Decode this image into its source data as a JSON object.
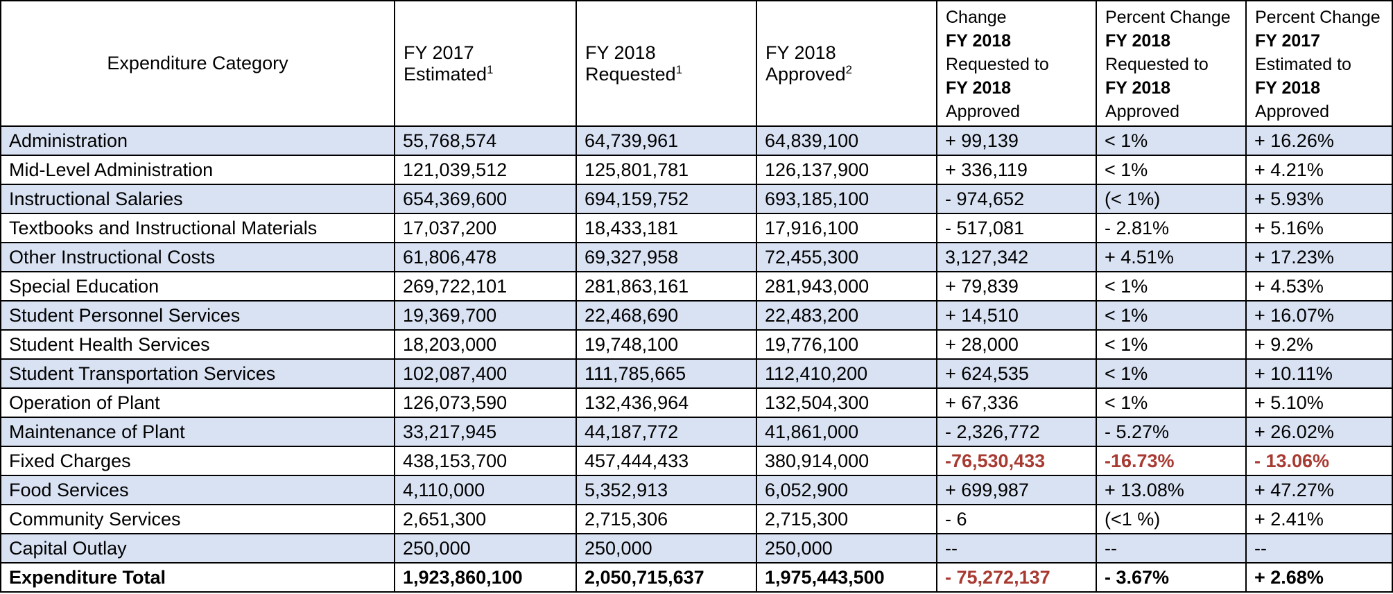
{
  "accent_colors": {
    "stripe": "#D9E2F3",
    "negative_red": "#A83A32",
    "border": "#000000"
  },
  "table": {
    "columns": {
      "category": "Expenditure Category",
      "fy2017_estimated": {
        "line1": "FY 2017",
        "line2": "Estimated",
        "sup": "1"
      },
      "fy2018_requested": {
        "line1": "FY 2018",
        "line2": "Requested",
        "sup": "1"
      },
      "fy2018_approved": {
        "line1": "FY 2018",
        "line2": "Approved",
        "sup": "2"
      },
      "change": {
        "l1": "Change",
        "l2": "FY 2018",
        "l3": "Requested to",
        "l4": "FY 2018",
        "l5": "Approved"
      },
      "pct_change_requested": {
        "l1": "Percent Change",
        "l2": "FY 2018",
        "l3": "Requested to",
        "l4": "FY 2018",
        "l5": "Approved"
      },
      "pct_change_estimated": {
        "l1": "Percent Change",
        "l2": "FY 2017",
        "l3": "Estimated to",
        "l4": "FY 2018",
        "l5": "Approved"
      }
    },
    "rows": [
      {
        "category": "Administration",
        "values": [
          "55,768,574",
          "64,739,961",
          "64,839,100",
          "+ 99,139",
          "< 1%",
          "+ 16.26%"
        ],
        "red": [
          false,
          false,
          false,
          false,
          false,
          false
        ],
        "bold": false
      },
      {
        "category": "Mid-Level Administration",
        "values": [
          "121,039,512",
          "125,801,781",
          "126,137,900",
          "+ 336,119",
          "< 1%",
          "+ 4.21%"
        ],
        "red": [
          false,
          false,
          false,
          false,
          false,
          false
        ],
        "bold": false
      },
      {
        "category": "Instructional Salaries",
        "values": [
          "654,369,600",
          "694,159,752",
          "693,185,100",
          "- 974,652",
          "(< 1%)",
          "+ 5.93%"
        ],
        "red": [
          false,
          false,
          false,
          false,
          false,
          false
        ],
        "bold": false
      },
      {
        "category": "Textbooks and Instructional Materials",
        "values": [
          "17,037,200",
          "18,433,181",
          "17,916,100",
          "- 517,081",
          "- 2.81%",
          "+ 5.16%"
        ],
        "red": [
          false,
          false,
          false,
          false,
          false,
          false
        ],
        "bold": false
      },
      {
        "category": "Other Instructional Costs",
        "values": [
          "61,806,478",
          "69,327,958",
          "72,455,300",
          "3,127,342",
          "+ 4.51%",
          "+ 17.23%"
        ],
        "red": [
          false,
          false,
          false,
          false,
          false,
          false
        ],
        "bold": false
      },
      {
        "category": "Special Education",
        "values": [
          "269,722,101",
          "281,863,161",
          "281,943,000",
          "+ 79,839",
          "< 1%",
          "+ 4.53%"
        ],
        "red": [
          false,
          false,
          false,
          false,
          false,
          false
        ],
        "bold": false
      },
      {
        "category": "Student Personnel Services",
        "values": [
          "19,369,700",
          "22,468,690",
          "22,483,200",
          "+ 14,510",
          "< 1%",
          "+ 16.07%"
        ],
        "red": [
          false,
          false,
          false,
          false,
          false,
          false
        ],
        "bold": false
      },
      {
        "category": "Student Health Services",
        "values": [
          "18,203,000",
          "19,748,100",
          "19,776,100",
          "+ 28,000",
          "< 1%",
          "+ 9.2%"
        ],
        "red": [
          false,
          false,
          false,
          false,
          false,
          false
        ],
        "bold": false
      },
      {
        "category": "Student Transportation Services",
        "values": [
          "102,087,400",
          "111,785,665",
          "112,410,200",
          "+ 624,535",
          "< 1%",
          "+ 10.11%"
        ],
        "red": [
          false,
          false,
          false,
          false,
          false,
          false
        ],
        "bold": false
      },
      {
        "category": "Operation of Plant",
        "values": [
          "126,073,590",
          "132,436,964",
          "132,504,300",
          "+ 67,336",
          "< 1%",
          "+ 5.10%"
        ],
        "red": [
          false,
          false,
          false,
          false,
          false,
          false
        ],
        "bold": false
      },
      {
        "category": "Maintenance of Plant",
        "values": [
          "33,217,945",
          "44,187,772",
          "41,861,000",
          "- 2,326,772",
          "- 5.27%",
          "+ 26.02%"
        ],
        "red": [
          false,
          false,
          false,
          false,
          false,
          false
        ],
        "bold": false
      },
      {
        "category": "Fixed Charges",
        "values": [
          "438,153,700",
          "457,444,433",
          "380,914,000",
          "-76,530,433",
          "-16.73%",
          "- 13.06%"
        ],
        "red": [
          false,
          false,
          false,
          true,
          true,
          true
        ],
        "bold": false
      },
      {
        "category": "Food Services",
        "values": [
          "4,110,000",
          "5,352,913",
          "6,052,900",
          "+ 699,987",
          "+ 13.08%",
          "+ 47.27%"
        ],
        "red": [
          false,
          false,
          false,
          false,
          false,
          false
        ],
        "bold": false
      },
      {
        "category": "Community Services",
        "values": [
          "2,651,300",
          "2,715,306",
          "2,715,300",
          "- 6",
          "(<1 %)",
          "+ 2.41%"
        ],
        "red": [
          false,
          false,
          false,
          false,
          false,
          false
        ],
        "bold": false
      },
      {
        "category": "Capital Outlay",
        "values": [
          "250,000",
          "250,000",
          "250,000",
          "--",
          "--",
          "--"
        ],
        "red": [
          false,
          false,
          false,
          false,
          false,
          false
        ],
        "bold": false
      },
      {
        "category": "Expenditure Total",
        "values": [
          "1,923,860,100",
          "2,050,715,637",
          "1,975,443,500",
          "- 75,272,137",
          "- 3.67%",
          "+ 2.68%"
        ],
        "red": [
          false,
          false,
          false,
          true,
          false,
          false
        ],
        "bold": true
      }
    ]
  }
}
